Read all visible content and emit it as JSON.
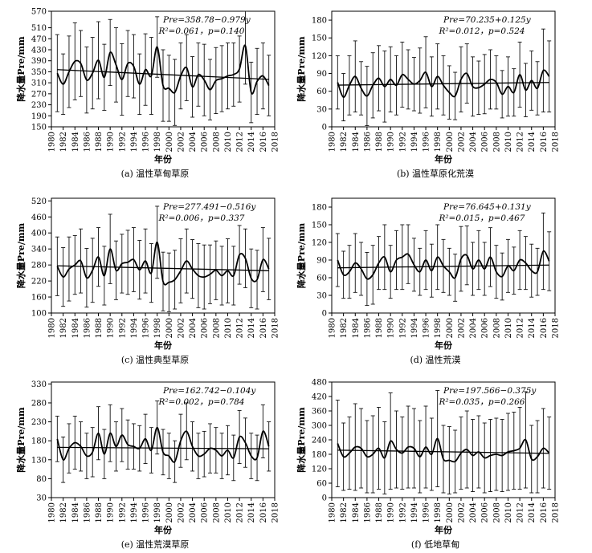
{
  "chart_data": [
    {
      "type": "line",
      "caption": "(a) 温性草甸草原",
      "equation_line1": "Pre=358.78−0.979y",
      "equation_line2": "R²=0.061，p=0.140",
      "xlabel": "年份",
      "ylabel": "降水量Pre/mm",
      "xlim": [
        1980,
        2018
      ],
      "ylim": [
        150,
        570
      ],
      "yticks": [
        150,
        190,
        230,
        270,
        310,
        350,
        390,
        430,
        470,
        510,
        570
      ],
      "xticks": [
        1980,
        1982,
        1984,
        1986,
        1988,
        1990,
        1992,
        1994,
        1996,
        1998,
        2000,
        2002,
        2004,
        2006,
        2008,
        2010,
        2012,
        2014,
        2016,
        2018
      ],
      "trend": {
        "intercept": 358.78,
        "slope": -0.979
      },
      "series": [
        {
          "x": [
            1981,
            1982,
            1983,
            1984,
            1985,
            1986,
            1987,
            1988,
            1989,
            1990,
            1991,
            1992,
            1993,
            1994,
            1995,
            1996,
            1997,
            1998,
            1999,
            2000,
            2001,
            2002,
            2003,
            2004,
            2005,
            2006,
            2007,
            2008,
            2009,
            2010,
            2011,
            2012,
            2013,
            2014,
            2015,
            2016,
            2017
          ],
          "values": [
            345,
            305,
            350,
            388,
            380,
            320,
            345,
            392,
            330,
            420,
            375,
            322,
            380,
            370,
            305,
            358,
            335,
            440,
            300,
            290,
            275,
            335,
            365,
            295,
            340,
            320,
            285,
            318,
            325,
            335,
            340,
            360,
            445,
            275,
            315,
            335,
            300
          ],
          "error": [
            140,
            110,
            130,
            140,
            120,
            120,
            130,
            140,
            120,
            120,
            135,
            130,
            120,
            115,
            110,
            130,
            140,
            110,
            130,
            120,
            120,
            120,
            120,
            110,
            115,
            130,
            110,
            120,
            120,
            120,
            115,
            120,
            140,
            110,
            120,
            120,
            110
          ]
        }
      ]
    },
    {
      "type": "line",
      "caption": "(b) 温性草原化荒漠",
      "equation_line1": "Pre=70.235+0.125y",
      "equation_line2": "R²=0.012，p=0.524",
      "xlabel": "年份",
      "ylabel": "降水量Pre/mm",
      "xlim": [
        1980,
        2018
      ],
      "ylim": [
        0,
        195
      ],
      "yticks": [
        0,
        30,
        60,
        90,
        120,
        150,
        180
      ],
      "xticks": [
        1980,
        1982,
        1984,
        1986,
        1988,
        1990,
        1992,
        1994,
        1996,
        1998,
        2000,
        2002,
        2004,
        2006,
        2008,
        2010,
        2012,
        2014,
        2016,
        2018
      ],
      "trend": {
        "intercept": 70.235,
        "slope": 0.125
      },
      "series": [
        {
          "x": [
            1981,
            1982,
            1983,
            1984,
            1985,
            1986,
            1987,
            1988,
            1989,
            1990,
            1991,
            1992,
            1993,
            1994,
            1995,
            1996,
            1997,
            1998,
            1999,
            2000,
            2001,
            2002,
            2003,
            2004,
            2005,
            2006,
            2007,
            2008,
            2009,
            2010,
            2011,
            2012,
            2013,
            2014,
            2015,
            2016,
            2017
          ],
          "values": [
            75,
            50,
            70,
            85,
            65,
            52,
            70,
            82,
            68,
            80,
            70,
            88,
            80,
            72,
            78,
            92,
            68,
            85,
            70,
            58,
            52,
            80,
            90,
            68,
            66,
            72,
            80,
            75,
            55,
            68,
            58,
            88,
            62,
            78,
            65,
            95,
            85
          ],
          "error": [
            45,
            40,
            50,
            60,
            45,
            50,
            55,
            55,
            60,
            55,
            50,
            55,
            50,
            45,
            55,
            60,
            50,
            55,
            50,
            45,
            40,
            55,
            50,
            50,
            45,
            50,
            50,
            45,
            40,
            50,
            40,
            55,
            45,
            50,
            45,
            70,
            60
          ]
        }
      ]
    },
    {
      "type": "line",
      "caption": "(c) 温性典型草原",
      "equation_line1": "Pre=277.491−0.516y",
      "equation_line2": "R²=0.006，p=0.337",
      "xlabel": "年份",
      "ylabel": "降水量Pre/mm",
      "xlim": [
        1980,
        2018
      ],
      "ylim": [
        100,
        530
      ],
      "yticks": [
        100,
        160,
        220,
        280,
        340,
        400,
        460,
        520
      ],
      "xticks": [
        1980,
        1982,
        1984,
        1986,
        1988,
        1990,
        1992,
        1994,
        1996,
        1998,
        2000,
        2002,
        2004,
        2006,
        2008,
        2010,
        2012,
        2014,
        2016,
        2018
      ],
      "trend": {
        "intercept": 277.491,
        "slope": -0.516
      },
      "series": [
        {
          "x": [
            1981,
            1982,
            1983,
            1984,
            1985,
            1986,
            1987,
            1988,
            1989,
            1990,
            1991,
            1992,
            1993,
            1994,
            1995,
            1996,
            1997,
            1998,
            1999,
            2000,
            2001,
            2002,
            2003,
            2004,
            2005,
            2006,
            2007,
            2008,
            2009,
            2010,
            2011,
            2012,
            2013,
            2014,
            2015,
            2016,
            2017
          ],
          "values": [
            275,
            235,
            265,
            280,
            295,
            232,
            260,
            310,
            240,
            340,
            260,
            285,
            290,
            300,
            262,
            295,
            250,
            365,
            218,
            215,
            225,
            258,
            295,
            265,
            240,
            235,
            245,
            260,
            240,
            258,
            240,
            318,
            305,
            230,
            225,
            300,
            265
          ],
          "error": [
            110,
            110,
            120,
            110,
            120,
            110,
            120,
            110,
            110,
            130,
            110,
            110,
            120,
            120,
            110,
            120,
            110,
            135,
            110,
            110,
            110,
            120,
            120,
            110,
            120,
            120,
            110,
            110,
            110,
            120,
            110,
            110,
            110,
            110,
            110,
            120,
            115
          ]
        }
      ]
    },
    {
      "type": "line",
      "caption": "(d) 温性荒漠",
      "equation_line1": "Pre=76.645+0.131y",
      "equation_line2": "R²=0.015，p=0.467",
      "xlabel": "年份",
      "ylabel": "降水量Pre/mm",
      "xlim": [
        1980,
        2018
      ],
      "ylim": [
        0,
        195
      ],
      "yticks": [
        0,
        30,
        60,
        90,
        120,
        150,
        180
      ],
      "xticks": [
        1980,
        1982,
        1984,
        1986,
        1988,
        1990,
        1992,
        1994,
        1996,
        1998,
        2000,
        2002,
        2004,
        2006,
        2008,
        2010,
        2012,
        2014,
        2016,
        2018
      ],
      "trend": {
        "intercept": 76.645,
        "slope": 0.131
      },
      "series": [
        {
          "x": [
            1981,
            1982,
            1983,
            1984,
            1985,
            1986,
            1987,
            1988,
            1989,
            1990,
            1991,
            1992,
            1993,
            1994,
            1995,
            1996,
            1997,
            1998,
            1999,
            2000,
            2001,
            2002,
            2003,
            2004,
            2005,
            2006,
            2007,
            2008,
            2009,
            2010,
            2011,
            2012,
            2013,
            2014,
            2015,
            2016,
            2017
          ],
          "values": [
            90,
            65,
            70,
            85,
            75,
            58,
            65,
            85,
            95,
            70,
            90,
            95,
            100,
            82,
            70,
            90,
            72,
            95,
            80,
            70,
            60,
            92,
            98,
            75,
            90,
            75,
            95,
            70,
            62,
            80,
            72,
            90,
            85,
            72,
            70,
            105,
            88
          ],
          "error": [
            45,
            40,
            45,
            50,
            45,
            45,
            50,
            45,
            55,
            45,
            50,
            55,
            50,
            45,
            40,
            50,
            45,
            55,
            45,
            40,
            40,
            55,
            50,
            45,
            50,
            45,
            50,
            45,
            40,
            45,
            40,
            50,
            45,
            45,
            40,
            65,
            50
          ]
        }
      ]
    },
    {
      "type": "line",
      "caption": "(e) 温性荒漠草原",
      "equation_line1": "Pre=162.742−0.104y",
      "equation_line2": "R²=0.002，p=0.784",
      "xlabel": "年份",
      "ylabel": "降水量Pre/mm",
      "xlim": [
        1980,
        2018
      ],
      "ylim": [
        30,
        335
      ],
      "yticks": [
        30,
        80,
        130,
        180,
        230,
        280,
        330
      ],
      "xticks": [
        1980,
        1982,
        1984,
        1986,
        1988,
        1990,
        1992,
        1994,
        1996,
        1998,
        2000,
        2002,
        2004,
        2006,
        2008,
        2010,
        2012,
        2014,
        2016,
        2018
      ],
      "trend": {
        "intercept": 162.742,
        "slope": -0.104
      },
      "series": [
        {
          "x": [
            1981,
            1982,
            1983,
            1984,
            1985,
            1986,
            1987,
            1988,
            1989,
            1990,
            1991,
            1992,
            1993,
            1994,
            1995,
            1996,
            1997,
            1998,
            1999,
            2000,
            2001,
            2002,
            2003,
            2004,
            2005,
            2006,
            2007,
            2008,
            2009,
            2010,
            2011,
            2012,
            2013,
            2014,
            2015,
            2016,
            2017
          ],
          "values": [
            185,
            130,
            160,
            175,
            165,
            140,
            150,
            200,
            145,
            200,
            165,
            195,
            170,
            165,
            160,
            185,
            155,
            215,
            150,
            140,
            125,
            180,
            205,
            165,
            140,
            145,
            160,
            155,
            140,
            155,
            135,
            190,
            175,
            140,
            135,
            205,
            165
          ],
          "error": [
            60,
            60,
            65,
            70,
            65,
            60,
            65,
            70,
            65,
            75,
            65,
            70,
            65,
            60,
            60,
            65,
            60,
            70,
            60,
            60,
            55,
            70,
            75,
            65,
            60,
            60,
            65,
            60,
            60,
            65,
            60,
            70,
            65,
            60,
            60,
            70,
            65
          ]
        }
      ]
    },
    {
      "type": "line",
      "caption": "(f) 低地草甸",
      "equation_line1": "Pre=197.566−0.375y",
      "equation_line2": "R²=0.035，p=0.266",
      "xlabel": "年份",
      "ylabel": "降水量Pre/mm",
      "xlim": [
        1980,
        2018
      ],
      "ylim": [
        0,
        480
      ],
      "yticks": [
        0,
        60,
        120,
        180,
        240,
        300,
        360,
        420,
        480
      ],
      "xticks": [
        1980,
        1982,
        1984,
        1986,
        1988,
        1990,
        1992,
        1994,
        1996,
        1998,
        2000,
        2002,
        2004,
        2006,
        2008,
        2010,
        2012,
        2014,
        2016,
        2018
      ],
      "trend": {
        "intercept": 197.566,
        "slope": -0.375
      },
      "series": [
        {
          "x": [
            1981,
            1982,
            1983,
            1984,
            1985,
            1986,
            1987,
            1988,
            1989,
            1990,
            1991,
            1992,
            1993,
            1994,
            1995,
            1996,
            1997,
            1998,
            1999,
            2000,
            2001,
            2002,
            2003,
            2004,
            2005,
            2006,
            2007,
            2008,
            2009,
            2010,
            2011,
            2012,
            2013,
            2014,
            2015,
            2016,
            2017
          ],
          "values": [
            225,
            170,
            185,
            210,
            205,
            170,
            180,
            205,
            165,
            235,
            200,
            185,
            210,
            205,
            170,
            210,
            180,
            245,
            160,
            155,
            150,
            185,
            200,
            175,
            190,
            165,
            175,
            180,
            175,
            190,
            195,
            205,
            240,
            160,
            170,
            205,
            185
          ],
          "error": [
            180,
            140,
            150,
            180,
            165,
            150,
            160,
            170,
            150,
            200,
            160,
            150,
            170,
            165,
            150,
            170,
            150,
            200,
            140,
            140,
            130,
            150,
            160,
            150,
            150,
            145,
            150,
            150,
            150,
            160,
            160,
            170,
            200,
            140,
            150,
            165,
            150
          ]
        }
      ]
    }
  ]
}
